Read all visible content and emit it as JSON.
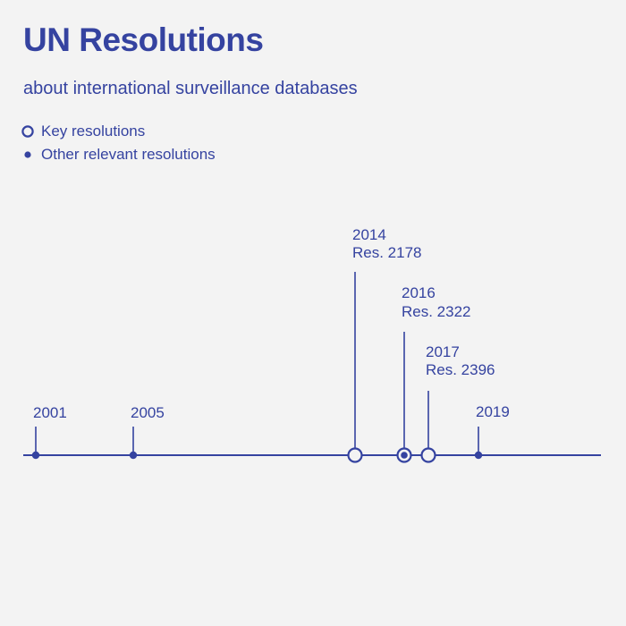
{
  "header": {
    "title": "UN Resolutions",
    "subtitle": "about international surveillance databases"
  },
  "legend": {
    "key_label": "Key resolutions",
    "other_label": "Other relevant resolutions"
  },
  "colors": {
    "accent": "#3543a0",
    "background": "#f3f3f3"
  },
  "timeline": {
    "events": [
      {
        "year": "2001",
        "resolution": "",
        "kind": "other"
      },
      {
        "year": "2005",
        "resolution": "",
        "kind": "other"
      },
      {
        "year": "2014",
        "resolution": "Res. 2178",
        "kind": "key"
      },
      {
        "year": "2016",
        "resolution": "Res. 2322",
        "kind": "key-filled"
      },
      {
        "year": "2017",
        "resolution": "Res. 2396",
        "kind": "key"
      },
      {
        "year": "2019",
        "resolution": "",
        "kind": "other"
      }
    ]
  }
}
